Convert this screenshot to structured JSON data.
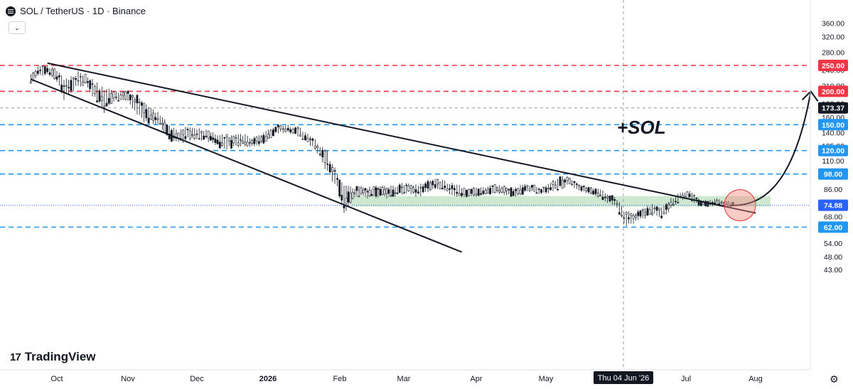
{
  "header": {
    "symbol_line": "SOL / TetherUS · 1D · Binance",
    "collapse_icon": "chevron-down-icon"
  },
  "branding": {
    "logo_text": "TradingView",
    "logo_mark": "17"
  },
  "chart_data": {
    "type": "candlestick",
    "title": "SOL / TetherUS · 1D · Binance",
    "y_scale": "log",
    "ylim": [
      43,
      360
    ],
    "y_ticks": [
      360,
      320,
      280,
      250,
      240,
      210,
      200,
      180,
      160,
      150,
      140,
      125,
      120,
      110,
      98,
      86,
      74.88,
      68,
      62,
      54,
      48,
      43
    ],
    "y_ticks_plain": [
      "360.00",
      "320.00",
      "280.00",
      "240.00",
      "210.00",
      "180.00",
      "160.00",
      "140.00",
      "125.00",
      "110.00",
      "86.00",
      "68.00",
      "54.00",
      "48.00",
      "43.00"
    ],
    "x_ticks": [
      "Oct",
      "Nov",
      "Dec",
      "2026",
      "Feb",
      "Mar",
      "Apr",
      "May",
      "Jul",
      "Aug"
    ],
    "crosshair": {
      "date_label": "Thu 04 Jun '26",
      "price_label": "173.37",
      "price": 173.37
    },
    "last_price": {
      "label": "74.88",
      "value": 74.88,
      "color": "#2962ff"
    },
    "annotation": {
      "text": "+SOL",
      "color": "#131722"
    },
    "horizontal_levels": [
      {
        "value": 250,
        "label": "250.00",
        "color": "#f23645"
      },
      {
        "value": 200,
        "label": "200.00",
        "color": "#f23645"
      },
      {
        "value": 150,
        "label": "150.00",
        "color": "#2196f3"
      },
      {
        "value": 120,
        "label": "120.00",
        "color": "#2196f3"
      },
      {
        "value": 98,
        "label": "98.00",
        "color": "#2196f3"
      },
      {
        "value": 62,
        "label": "62.00",
        "color": "#2196f3"
      }
    ],
    "support_zone": {
      "low": 74,
      "high": 81,
      "from": "Feb",
      "to": "Jul",
      "color": "#a5d6a7"
    },
    "highlight_circle": {
      "color": "#f28b82",
      "near": "Jul"
    },
    "series": [
      {
        "name": "SOL",
        "kind": "candles",
        "up_color": "#131722",
        "down_color": "#131722",
        "points": [
          [
            "Sep 20",
            210,
            235
          ],
          [
            "Sep 23",
            225,
            248
          ],
          [
            "Sep 27",
            230,
            252
          ],
          [
            "Oct 1",
            215,
            245
          ],
          [
            "Oct 4",
            185,
            225
          ],
          [
            "Oct 7",
            195,
            230
          ],
          [
            "Oct 10",
            205,
            238
          ],
          [
            "Oct 13",
            210,
            235
          ],
          [
            "Oct 17",
            185,
            220
          ],
          [
            "Oct 21",
            165,
            205
          ],
          [
            "Oct 25",
            180,
            205
          ],
          [
            "Oct 28",
            185,
            200
          ],
          [
            "Nov 1",
            180,
            205
          ],
          [
            "Nov 5",
            160,
            195
          ],
          [
            "Nov 9",
            150,
            180
          ],
          [
            "Nov 12",
            150,
            175
          ],
          [
            "Nov 15",
            145,
            165
          ],
          [
            "Nov 19",
            130,
            150
          ],
          [
            "Nov 23",
            125,
            145
          ],
          [
            "Nov 27",
            130,
            150
          ],
          [
            "Dec 1",
            128,
            148
          ],
          [
            "Dec 5",
            130,
            145
          ],
          [
            "Dec 9",
            125,
            140
          ],
          [
            "Dec 13",
            120,
            138
          ],
          [
            "Dec 17",
            122,
            138
          ],
          [
            "Dec 21",
            125,
            140
          ],
          [
            "Dec 25",
            122,
            135
          ],
          [
            "Dec 29",
            125,
            140
          ],
          [
            "Jan 2",
            130,
            145
          ],
          [
            "Jan 6",
            138,
            152
          ],
          [
            "Jan 10",
            140,
            150
          ],
          [
            "Jan 14",
            135,
            148
          ],
          [
            "Jan 18",
            128,
            140
          ],
          [
            "Jan 22",
            115,
            130
          ],
          [
            "Jan 26",
            95,
            120
          ],
          [
            "Jan 30",
            85,
            100
          ],
          [
            "Feb 3",
            68,
            90
          ],
          [
            "Feb 7",
            78,
            88
          ],
          [
            "Feb 11",
            80,
            90
          ],
          [
            "Feb 15",
            78,
            88
          ],
          [
            "Feb 19",
            80,
            90
          ],
          [
            "Feb 23",
            79,
            88
          ],
          [
            "Feb 27",
            80,
            90
          ],
          [
            "Mar 3",
            82,
            92
          ],
          [
            "Mar 7",
            80,
            90
          ],
          [
            "Mar 11",
            82,
            94
          ],
          [
            "Mar 15",
            85,
            95
          ],
          [
            "Mar 19",
            82,
            92
          ],
          [
            "Mar 23",
            80,
            90
          ],
          [
            "Mar 27",
            79,
            88
          ],
          [
            "Apr 1",
            80,
            88
          ],
          [
            "Apr 5",
            81,
            89
          ],
          [
            "Apr 9",
            82,
            90
          ],
          [
            "Apr 13",
            81,
            89
          ],
          [
            "Apr 17",
            80,
            88
          ],
          [
            "Apr 21",
            82,
            90
          ],
          [
            "Apr 25",
            83,
            90
          ],
          [
            "Apr 29",
            82,
            88
          ],
          [
            "May 3",
            83,
            92
          ],
          [
            "May 7",
            85,
            97
          ],
          [
            "May 11",
            88,
            96
          ],
          [
            "May 15",
            84,
            90
          ],
          [
            "May 19",
            82,
            88
          ],
          [
            "May 23",
            80,
            87
          ],
          [
            "May 27",
            76,
            84
          ],
          [
            "May 31",
            72,
            80
          ],
          [
            "Jun 4",
            62,
            72
          ],
          [
            "Jun 8",
            63,
            70
          ],
          [
            "Jun 12",
            66,
            74
          ],
          [
            "Jun 16",
            68,
            76
          ],
          [
            "Jun 20",
            66,
            75
          ],
          [
            "Jun 24",
            72,
            80
          ],
          [
            "Jun 28",
            78,
            84
          ],
          [
            "Jul 2",
            78,
            85
          ],
          [
            "Jul 6",
            74,
            80
          ],
          [
            "Jul 10",
            74,
            78
          ],
          [
            "Jul 14",
            74,
            80
          ],
          [
            "Jul 18",
            73,
            78
          ],
          [
            "Jul 22",
            74,
            77
          ]
        ]
      }
    ],
    "trendlines": [
      {
        "name": "upper-trendline",
        "from": [
          "Sep 27",
          255
        ],
        "to": [
          "Jul 31",
          70
        ]
      },
      {
        "name": "lower-trendline",
        "from": [
          "Sep 20",
          222
        ],
        "to": [
          "Mar 25",
          50
        ]
      },
      {
        "name": "projection-arrow",
        "from": [
          "Jul 20",
          74.88
        ],
        "to": [
          "Aug 25",
          200
        ]
      }
    ]
  }
}
